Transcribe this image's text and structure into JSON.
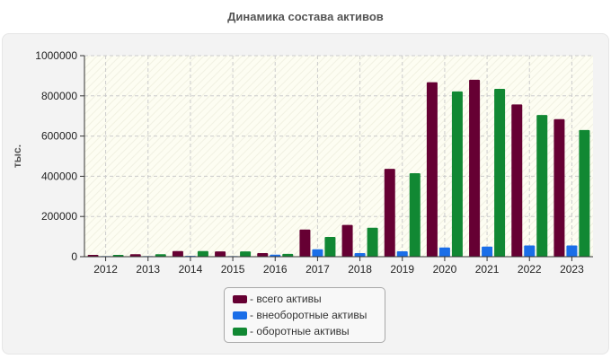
{
  "chart_data": {
    "type": "bar",
    "title": "Динамика состава активов",
    "xlabel": "",
    "ylabel": "тыс.",
    "ylim": [
      0,
      1000000
    ],
    "yticks": [
      0,
      200000,
      400000,
      600000,
      800000,
      1000000
    ],
    "ytick_labels": [
      "0",
      "200000",
      "400000",
      "600000",
      "800000",
      "1000000"
    ],
    "grid": true,
    "legend_position": "bottom-center",
    "categories": [
      "2012",
      "2013",
      "2014",
      "2015",
      "2016",
      "2017",
      "2018",
      "2019",
      "2020",
      "2021",
      "2022",
      "2023"
    ],
    "series": [
      {
        "name": "- всего активы",
        "color": "#660033",
        "values": [
          9000,
          12000,
          28000,
          26000,
          18000,
          135000,
          158000,
          437000,
          868000,
          880000,
          757000,
          684000
        ]
      },
      {
        "name": "- внеоборотные активы",
        "color": "#1a6ee8",
        "values": [
          3000,
          3000,
          4000,
          3000,
          10000,
          37000,
          18000,
          27000,
          46000,
          50000,
          56000,
          56000
        ]
      },
      {
        "name": "- оборотные активы",
        "color": "#118833",
        "values": [
          9000,
          12000,
          28000,
          26000,
          14000,
          98000,
          144000,
          415000,
          822000,
          835000,
          705000,
          630000
        ]
      }
    ]
  }
}
